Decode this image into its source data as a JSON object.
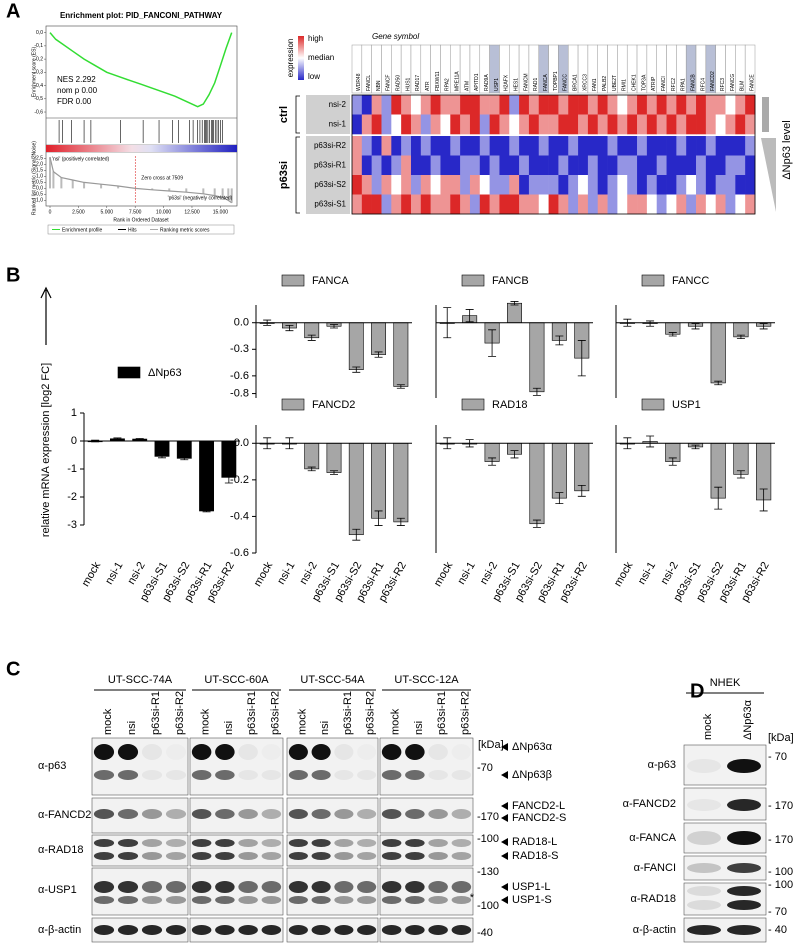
{
  "panel_labels": [
    "A",
    "B",
    "C",
    "D"
  ],
  "bar_panel": {
    "y_axis_label": "relative mRNA expression [log2 FC]"
  },
  "chart_data": [
    {
      "type": "line",
      "title": "Enrichment plot: PID_FANCONI_PATHWAY",
      "color": "#33dd33",
      "stats": [
        "NES 2.292",
        "nom p 0.00",
        "FDR 0.00"
      ],
      "y_label": "Enrichment score (ES)",
      "x_label": "Rank in Ordered Dataset",
      "x": [
        0,
        500,
        1000,
        2000,
        3000,
        4000,
        5000,
        6000,
        7000,
        8000,
        9000,
        10000,
        11000,
        12000,
        13000,
        13500,
        14000,
        14500,
        15000,
        15500,
        16000
      ],
      "values": [
        0,
        -0.05,
        -0.08,
        -0.14,
        -0.2,
        -0.25,
        -0.3,
        -0.33,
        -0.36,
        -0.39,
        -0.42,
        -0.45,
        -0.48,
        -0.52,
        -0.56,
        -0.54,
        -0.47,
        -0.38,
        -0.25,
        -0.12,
        0
      ],
      "xlim": [
        0,
        16200
      ],
      "ylim": [
        -0.63,
        0.02
      ],
      "xticks": [
        0,
        {
          "value": 2500,
          "label": "2.500"
        },
        {
          "value": 5000,
          "label": "5.000"
        },
        {
          "value": 7500,
          "label": "7.500"
        },
        {
          "value": 10000,
          "label": "10.000"
        },
        {
          "value": 12500,
          "label": "12.500"
        },
        {
          "value": 15000,
          "label": "15.000"
        }
      ],
      "yticks": [
        {
          "value": 0,
          "label": "0,0"
        },
        {
          "value": -0.1,
          "label": "-0,1"
        },
        {
          "value": -0.2,
          "label": "-0,2"
        },
        {
          "value": -0.3,
          "label": "-0,3"
        },
        {
          "value": -0.4,
          "label": "-0,4"
        },
        {
          "value": -0.5,
          "label": "-0,5"
        },
        {
          "value": -0.6,
          "label": "-0,6"
        }
      ],
      "hits": [
        800,
        1100,
        1900,
        3000,
        3600,
        6200,
        8200,
        9600,
        10800,
        11300,
        12300,
        12600,
        13000,
        13200,
        13400,
        13600,
        13700,
        13800,
        13900,
        14050,
        14200,
        14300,
        14400,
        14550,
        14700,
        14850,
        15000,
        15200
      ],
      "metric": {
        "y_label": "Ranked list metric (Signal2Noise)",
        "x": [
          0,
          300,
          1000,
          2000,
          3000,
          4500,
          6000,
          7509,
          9000,
          10500,
          12000,
          13500,
          14500,
          15200,
          15700,
          16000
        ],
        "values": [
          2.6,
          1.4,
          0.9,
          0.7,
          0.5,
          0.35,
          0.2,
          0,
          -0.12,
          -0.22,
          -0.32,
          -0.45,
          -0.6,
          -0.75,
          -1.0,
          -1.2
        ],
        "ylim": [
          -1.3,
          2.7
        ],
        "yticks": [
          {
            "value": 2.5,
            "label": "2,5"
          },
          {
            "value": 2,
            "label": "2,0"
          },
          {
            "value": 1.5,
            "label": "1,5"
          },
          {
            "value": 1,
            "label": "1,0"
          },
          {
            "value": 0.5,
            "label": "0,5"
          },
          {
            "value": 0,
            "label": "0,0"
          },
          {
            "value": -0.5,
            "label": "-0,5"
          },
          {
            "value": -1,
            "label": "-1,0"
          }
        ],
        "zero_cross": 7509,
        "zero_cross_label": "Zero cross at 7509",
        "positive_label": "'nsi' (positively correlated)",
        "negative_label": "'p63si' (negatively correlated)"
      },
      "legend": [
        "Enrichment profile",
        "Hits",
        "Ranking metric scores"
      ]
    },
    {
      "type": "heatmap",
      "column_title": "Gene symbol",
      "columns": [
        "WDR48",
        "FANCL",
        "NBN",
        "FANCF",
        "RAD50",
        "HUS1",
        "RAD17",
        "ATR",
        "FBXW11",
        "RPA2",
        "MRE11A",
        "ATM",
        "APITD1",
        "RAD9A",
        "USP1",
        "H2AFX",
        "HES1",
        "FANCM",
        "RAD1",
        "FANCA",
        "TOPBP1",
        "FANCC",
        "BRCA1",
        "XRCC3",
        "FAN1",
        "PALB2",
        "UBE2T",
        "RMI1",
        "CHEK1",
        "TOP3A",
        "ATRIP",
        "FANCI",
        "RFC2",
        "RPA1",
        "FANCB",
        "RFC4",
        "FANCD2",
        "RFC3",
        "FANCG",
        "BLM",
        "FANCE"
      ],
      "highlighted_columns": [
        14,
        19,
        21,
        34,
        36
      ],
      "rows": [
        "nsi-2",
        "nsi-1",
        "p63si-R2",
        "p63si-R1",
        "p63si-S2",
        "p63si-S1"
      ],
      "groups": [
        "ctrl",
        "p63si"
      ],
      "side_label": "ΔNp63 level",
      "legend": {
        "title": "expression",
        "labels": [
          "high",
          "median",
          "low"
        ]
      },
      "zlim": [
        -2,
        2
      ],
      "values": [
        [
          -1,
          -2,
          1,
          -1,
          2,
          1,
          0,
          1,
          2,
          1,
          1,
          2,
          2,
          1,
          1,
          2,
          -1,
          2,
          1,
          2,
          2,
          1,
          2,
          2,
          1,
          2,
          1,
          0,
          1,
          2,
          1,
          2,
          1,
          2,
          1,
          2,
          1,
          1,
          0,
          1,
          2
        ],
        [
          -2,
          1,
          2,
          -1,
          0,
          2,
          1,
          -1,
          1,
          0,
          2,
          1,
          2,
          -1,
          2,
          1,
          0,
          1,
          2,
          1,
          1,
          2,
          2,
          1,
          2,
          1,
          2,
          1,
          2,
          1,
          2,
          1,
          2,
          1,
          2,
          2,
          1,
          0,
          1,
          2,
          1
        ],
        [
          1,
          -1,
          -2,
          1,
          -2,
          -1,
          -2,
          -1,
          -2,
          -2,
          -1,
          -2,
          -2,
          -1,
          -2,
          -2,
          -1,
          -2,
          -2,
          -1,
          -2,
          -2,
          -1,
          -2,
          -2,
          -2,
          -1,
          -2,
          -2,
          -1,
          -2,
          -2,
          -2,
          -1,
          -2,
          -2,
          -1,
          -2,
          -2,
          -2,
          -1
        ],
        [
          1,
          -2,
          -1,
          -2,
          -1,
          1,
          -2,
          -2,
          -1,
          -2,
          -2,
          -1,
          -1,
          -2,
          -1,
          -2,
          -2,
          -1,
          -2,
          -2,
          -2,
          -1,
          -2,
          -2,
          -1,
          -2,
          -2,
          -1,
          -1,
          -2,
          -2,
          -1,
          -2,
          -2,
          -2,
          -1,
          -2,
          -2,
          -1,
          -1,
          -2
        ],
        [
          2,
          1,
          -1,
          1,
          0,
          1,
          -1,
          1,
          0,
          1,
          1,
          -1,
          1,
          0,
          -1,
          -1,
          1,
          -2,
          -1,
          -1,
          -1,
          -2,
          -1,
          0,
          -1,
          -2,
          -1,
          0,
          -1,
          -2,
          -1,
          -2,
          -2,
          -1,
          0,
          -1,
          -2,
          -1,
          -1,
          -2,
          -2
        ],
        [
          1,
          2,
          2,
          -1,
          1,
          2,
          1,
          2,
          1,
          1,
          2,
          1,
          -1,
          2,
          1,
          2,
          2,
          1,
          1,
          0,
          2,
          1,
          -1,
          1,
          -1,
          1,
          -1,
          0,
          1,
          1,
          0,
          -1,
          0,
          1,
          -1,
          1,
          0,
          1,
          -1,
          0,
          1
        ]
      ]
    },
    {
      "type": "bar",
      "title": "ΔNp63",
      "color": "#000000",
      "categories": [
        "mock",
        "nsi-1",
        "nsi-2",
        "p63si-S1",
        "p63si-S2",
        "p63si-R1",
        "p63si-R2"
      ],
      "values": [
        0,
        0.08,
        0.07,
        -0.55,
        -0.62,
        -2.5,
        -1.3
      ],
      "errors": [
        0.03,
        0.03,
        0.02,
        0.05,
        0.05,
        0.03,
        0.2
      ],
      "ylim": [
        -3,
        1
      ],
      "yticks": [
        1,
        0,
        -1,
        -2,
        -3
      ]
    },
    {
      "type": "bar",
      "title": "FANCA",
      "color": "#a6a6a6",
      "values": [
        0,
        -0.06,
        -0.17,
        -0.04,
        -0.53,
        -0.36,
        -0.72
      ],
      "errors": [
        0.03,
        0.03,
        0.03,
        0.02,
        0.03,
        0.03,
        0.02
      ],
      "ylim": [
        -0.85,
        0.2
      ],
      "yticks": [
        {
          "value": 0,
          "label": "0.0"
        },
        -0.3,
        -0.6,
        -0.8
      ]
    },
    {
      "type": "bar",
      "title": "FANCB",
      "color": "#a6a6a6",
      "values": [
        0,
        0.08,
        -0.23,
        0.22,
        -0.78,
        -0.2,
        -0.4
      ],
      "errors": [
        0.17,
        0.07,
        0.15,
        0.02,
        0.04,
        0.05,
        0.2
      ],
      "ylim": [
        -0.85,
        0.2
      ]
    },
    {
      "type": "bar",
      "title": "FANCC",
      "color": "#a6a6a6",
      "values": [
        0,
        -0.01,
        -0.13,
        -0.04,
        -0.68,
        -0.16,
        -0.04
      ],
      "errors": [
        0.04,
        0.03,
        0.02,
        0.03,
        0.02,
        0.02,
        0.03
      ],
      "ylim": [
        -0.85,
        0.2
      ]
    },
    {
      "type": "bar",
      "title": "FANCD2",
      "color": "#a6a6a6",
      "categories": [
        "mock",
        "nsi-1",
        "nsi-2",
        "p63si-S1",
        "p63si-S2",
        "p63si-R1",
        "p63si-R2"
      ],
      "values": [
        0,
        0,
        -0.14,
        -0.16,
        -0.5,
        -0.41,
        -0.43
      ],
      "errors": [
        0.03,
        0.03,
        0.01,
        0.01,
        0.03,
        0.04,
        0.02
      ],
      "ylim": [
        -0.6,
        0.1
      ],
      "yticks": [
        {
          "value": 0,
          "label": "0.0"
        },
        -0.2,
        -0.4,
        -0.6
      ]
    },
    {
      "type": "bar",
      "title": "RAD18",
      "color": "#a6a6a6",
      "categories": [
        "mock",
        "nsi-1",
        "nsi-2",
        "p63si-S1",
        "p63si-S2",
        "p63si-R1",
        "p63si-R2"
      ],
      "values": [
        0,
        0,
        -0.1,
        -0.06,
        -0.44,
        -0.3,
        -0.26
      ],
      "errors": [
        0.03,
        0.02,
        0.02,
        0.02,
        0.02,
        0.03,
        0.03
      ],
      "ylim": [
        -0.6,
        0.1
      ]
    },
    {
      "type": "bar",
      "title": "USP1",
      "color": "#a6a6a6",
      "categories": [
        "mock",
        "nsi-1",
        "nsi-2",
        "p63si-S1",
        "p63si-S2",
        "p63si-R1",
        "p63si-R2"
      ],
      "values": [
        0,
        0.01,
        -0.1,
        -0.02,
        -0.3,
        -0.17,
        -0.31
      ],
      "errors": [
        0.03,
        0.03,
        0.02,
        0.01,
        0.06,
        0.02,
        0.06
      ],
      "ylim": [
        -0.6,
        0.1
      ]
    }
  ],
  "blot_c": {
    "cell_lines": [
      "UT-SCC-74A",
      "UT-SCC-60A",
      "UT-SCC-54A",
      "UT-SCC-12A"
    ],
    "lanes": [
      "mock",
      "nsi",
      "p63si-R1",
      "p63si-R2"
    ],
    "antibodies": [
      "α-p63",
      "α-FANCD2",
      "α-RAD18",
      "α-USP1",
      "α-β-actin"
    ],
    "unit": "[kDa]",
    "markers": [
      "-70",
      "-170",
      "-100",
      "-130",
      "-100",
      "-40"
    ],
    "asterisk": "*",
    "bands": [
      "ΔNp63α",
      "ΔNp63β",
      "FANCD2-L",
      "FANCD2-S",
      "RAD18-L",
      "RAD18-S",
      "USP1-L",
      "USP1-S"
    ]
  },
  "blot_d": {
    "cell_line": "NHEK",
    "lanes": [
      "mock",
      "ΔNp63α"
    ],
    "antibodies": [
      "α-p63",
      "α-FANCD2",
      "α-FANCA",
      "α-FANCI",
      "α-RAD18",
      "α-β-actin"
    ],
    "unit": "[kDa]",
    "markers": [
      "- 70",
      "- 170",
      "- 170",
      "- 100",
      "- 100",
      "- 70",
      "- 40"
    ]
  }
}
